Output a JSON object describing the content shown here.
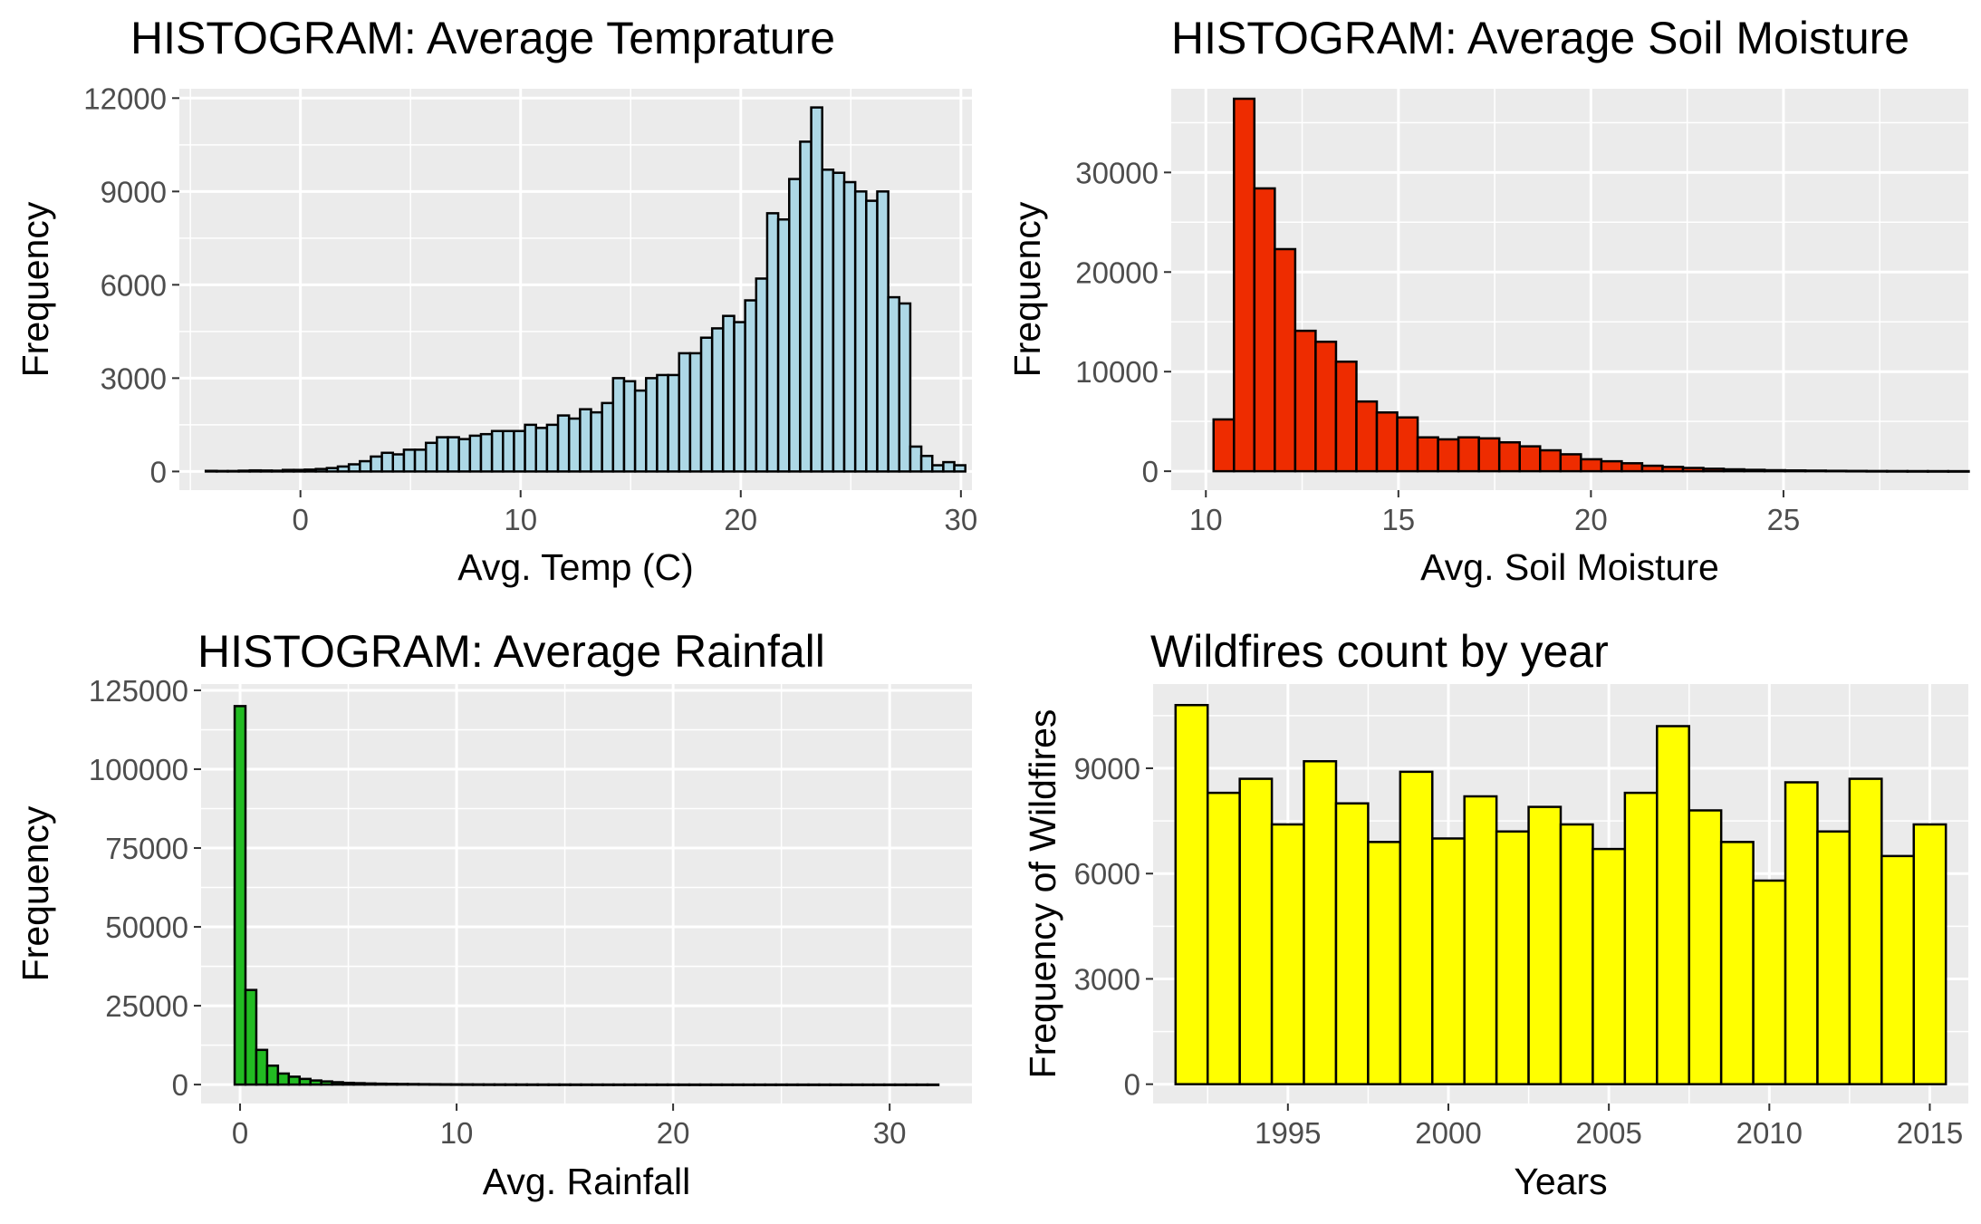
{
  "chart_data": [
    {
      "id": "temp",
      "type": "bar",
      "title": "HISTOGRAM: Average Temprature",
      "xlabel": "Avg. Temp (C)",
      "ylabel": "Frequency",
      "xlim": [
        -5.5,
        30.5
      ],
      "ylim": [
        -600,
        12300
      ],
      "xticks": [
        0,
        10,
        20,
        30
      ],
      "yticks": [
        0,
        3000,
        6000,
        9000,
        12000
      ],
      "grid": true,
      "fill": "#add8e6",
      "stroke": "#000000",
      "bin_start": -4.3,
      "bin_width": 0.5,
      "values": [
        20,
        15,
        15,
        25,
        35,
        30,
        25,
        50,
        50,
        60,
        80,
        110,
        160,
        230,
        330,
        480,
        600,
        550,
        700,
        700,
        920,
        1100,
        1100,
        1040,
        1150,
        1200,
        1300,
        1300,
        1300,
        1500,
        1400,
        1500,
        1800,
        1700,
        2000,
        1900,
        2200,
        3000,
        2900,
        2600,
        3000,
        3100,
        3100,
        3800,
        3800,
        4300,
        4600,
        5000,
        4800,
        5500,
        6200,
        8300,
        8100,
        9400,
        10600,
        11700,
        9700,
        9600,
        9300,
        9000,
        8700,
        9000,
        5600,
        5400,
        800,
        500,
        200,
        300,
        200
      ]
    },
    {
      "id": "soil",
      "type": "bar",
      "title": "HISTOGRAM: Average Soil Moisture",
      "xlabel": "Avg. Soil Moisture",
      "ylabel": "Frequency",
      "xlim": [
        9.1,
        29.8
      ],
      "ylim": [
        -1900,
        38400
      ],
      "xticks": [
        10,
        15,
        20,
        25
      ],
      "yticks": [
        0,
        10000,
        20000,
        30000
      ],
      "grid": true,
      "fill": "#ee2c00",
      "stroke": "#000000",
      "bin_start": 10.2,
      "bin_width": 0.53,
      "values": [
        5200,
        37400,
        28400,
        22300,
        14100,
        13000,
        11000,
        7000,
        5900,
        5400,
        3400,
        3200,
        3400,
        3300,
        2900,
        2500,
        2100,
        1700,
        1200,
        1000,
        800,
        550,
        430,
        330,
        250,
        190,
        140,
        100,
        80,
        60,
        40,
        30,
        20,
        15,
        10,
        8,
        5
      ]
    },
    {
      "id": "rain",
      "type": "bar",
      "title": "HISTOGRAM: Average Rainfall",
      "xlabel": "Avg. Rainfall",
      "ylabel": "Frequency",
      "xlim": [
        -1.8,
        33.8
      ],
      "ylim": [
        -6000,
        127000
      ],
      "xticks": [
        0,
        10,
        20,
        30
      ],
      "yticks": [
        0,
        25000,
        50000,
        75000,
        100000,
        125000
      ],
      "grid": true,
      "fill": "#22bb22",
      "stroke": "#000000",
      "bin_start": -0.25,
      "bin_width": 0.5,
      "values": [
        120000,
        30000,
        11000,
        6000,
        3500,
        2500,
        1800,
        1300,
        1000,
        750,
        550,
        450,
        350,
        280,
        230,
        190,
        160,
        130,
        110,
        90,
        75,
        65,
        55,
        45,
        40,
        35,
        30,
        25,
        22,
        20,
        18,
        16,
        14,
        12,
        11,
        10,
        9,
        8,
        7,
        6,
        6,
        5,
        5,
        5,
        4,
        4,
        4,
        3,
        3,
        3,
        3,
        3,
        2,
        2,
        2,
        2,
        2,
        2,
        2,
        2,
        2,
        2,
        2,
        2,
        2
      ]
    },
    {
      "id": "years",
      "type": "bar",
      "title": "Wildfires count by year",
      "xlabel": "Years",
      "ylabel": "Frequency of Wildfires",
      "xlim": [
        1990.8,
        2016.2
      ],
      "ylim": [
        -550,
        11400
      ],
      "xticks": [
        1995,
        2000,
        2005,
        2010,
        2015
      ],
      "yticks": [
        0,
        3000,
        6000,
        9000
      ],
      "grid": true,
      "fill": "#ffff00",
      "stroke": "#000000",
      "bin_start": 1991.5,
      "bin_width": 1,
      "categories": [
        1992,
        1993,
        1994,
        1995,
        1996,
        1997,
        1998,
        1999,
        2000,
        2001,
        2002,
        2003,
        2004,
        2005,
        2006,
        2007,
        2008,
        2009,
        2010,
        2011,
        2012,
        2013,
        2014,
        2015
      ],
      "values": [
        10800,
        8300,
        8700,
        7400,
        9200,
        8000,
        6900,
        8900,
        7000,
        8200,
        7200,
        7900,
        7400,
        6700,
        8300,
        10200,
        7800,
        6900,
        5800,
        8600,
        7200,
        8700,
        6500,
        7400
      ]
    }
  ]
}
